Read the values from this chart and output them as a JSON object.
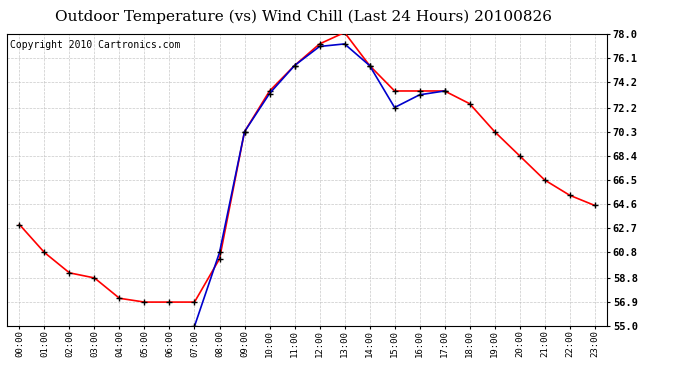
{
  "title": "Outdoor Temperature (vs) Wind Chill (Last 24 Hours) 20100826",
  "copyright": "Copyright 2010 Cartronics.com",
  "x_labels": [
    "00:00",
    "01:00",
    "02:00",
    "03:00",
    "04:00",
    "05:00",
    "06:00",
    "07:00",
    "08:00",
    "09:00",
    "10:00",
    "11:00",
    "12:00",
    "13:00",
    "14:00",
    "15:00",
    "16:00",
    "17:00",
    "18:00",
    "19:00",
    "20:00",
    "21:00",
    "22:00",
    "23:00"
  ],
  "y_ticks": [
    55.0,
    56.9,
    58.8,
    60.8,
    62.7,
    64.6,
    66.5,
    68.4,
    70.3,
    72.2,
    74.2,
    76.1,
    78.0
  ],
  "y_min": 55.0,
  "y_max": 78.0,
  "temp_red": [
    63.0,
    60.8,
    59.2,
    58.8,
    57.2,
    56.9,
    56.9,
    56.9,
    60.3,
    70.3,
    73.5,
    75.5,
    77.2,
    78.1,
    75.5,
    73.5,
    73.5,
    73.5,
    72.5,
    70.3,
    68.4,
    66.5,
    65.3,
    64.5
  ],
  "wind_chill_blue": [
    null,
    null,
    null,
    null,
    null,
    null,
    null,
    55.0,
    60.8,
    70.3,
    73.3,
    75.5,
    77.0,
    77.2,
    75.5,
    72.2,
    73.2,
    73.5,
    null,
    null,
    null,
    null,
    null,
    null
  ],
  "line_color_red": "#ff0000",
  "line_color_blue": "#0000cc",
  "bg_color": "#ffffff",
  "plot_bg": "#ffffff",
  "grid_color": "#bbbbbb",
  "title_fontsize": 11,
  "copyright_fontsize": 7,
  "marker_size": 3.5,
  "marker_color": "#000000"
}
